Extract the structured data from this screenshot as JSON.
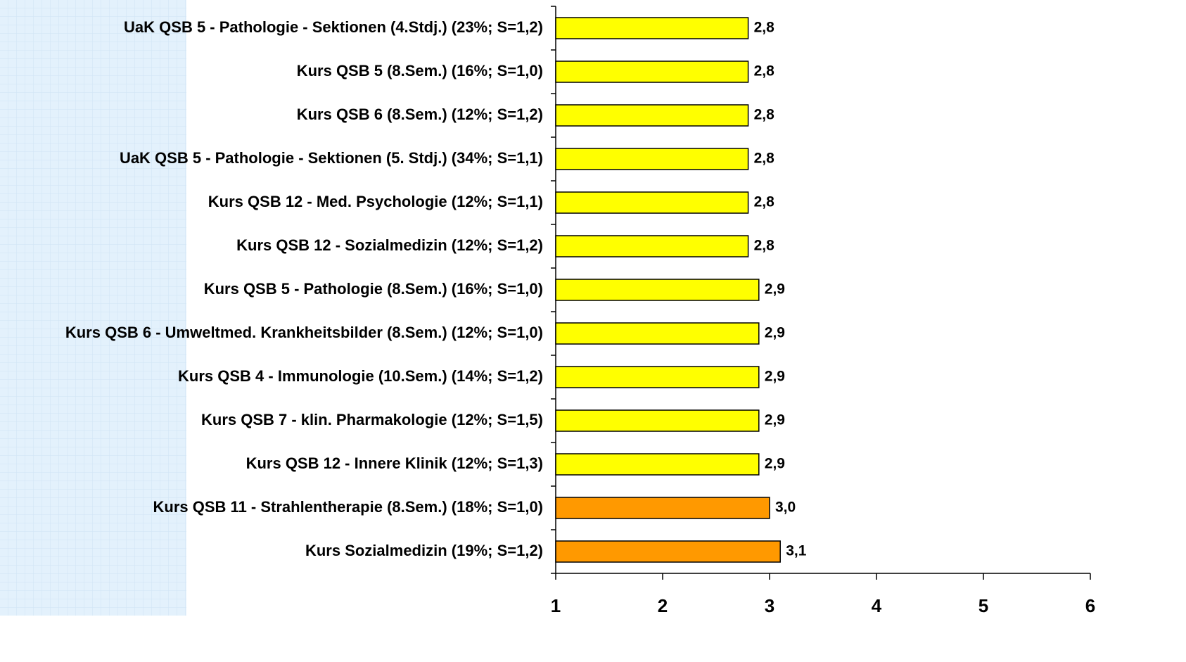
{
  "chart_data": {
    "type": "bar",
    "orientation": "horizontal",
    "categories": [
      "UaK QSB 5 - Pathologie - Sektionen (4.Stdj.) (23%; S=1,2)",
      "Kurs QSB 5 (8.Sem.) (16%; S=1,0)",
      "Kurs QSB 6 (8.Sem.) (12%; S=1,2)",
      "UaK QSB 5 - Pathologie - Sektionen (5. Stdj.) (34%; S=1,1)",
      "Kurs QSB 12 - Med. Psychologie (12%; S=1,1)",
      "Kurs QSB 12 - Sozialmedizin (12%; S=1,2)",
      "Kurs QSB 5 - Pathologie (8.Sem.) (16%; S=1,0)",
      "Kurs QSB 6 - Umweltmed. Krankheitsbilder (8.Sem.) (12%; S=1,0)",
      "Kurs QSB 4 - Immunologie (10.Sem.) (14%; S=1,2)",
      "Kurs QSB 7 - klin. Pharmakologie (12%; S=1,5)",
      "Kurs QSB 12 - Innere Klinik (12%; S=1,3)",
      "Kurs QSB 11 - Strahlentherapie (8.Sem.) (18%; S=1,0)",
      "Kurs Sozialmedizin (19%; S=1,2)"
    ],
    "values": [
      2.8,
      2.8,
      2.8,
      2.8,
      2.8,
      2.8,
      2.9,
      2.9,
      2.9,
      2.9,
      2.9,
      3.0,
      3.1
    ],
    "value_labels": [
      "2,8",
      "2,8",
      "2,8",
      "2,8",
      "2,8",
      "2,8",
      "2,9",
      "2,9",
      "2,9",
      "2,9",
      "2,9",
      "3,0",
      "3,1"
    ],
    "colors": [
      "#ffff00",
      "#ffff00",
      "#ffff00",
      "#ffff00",
      "#ffff00",
      "#ffff00",
      "#ffff00",
      "#ffff00",
      "#ffff00",
      "#ffff00",
      "#ffff00",
      "#ff9900",
      "#ff9900"
    ],
    "xlim": [
      1,
      6
    ],
    "xticks": [
      1,
      2,
      3,
      4,
      5,
      6
    ]
  }
}
